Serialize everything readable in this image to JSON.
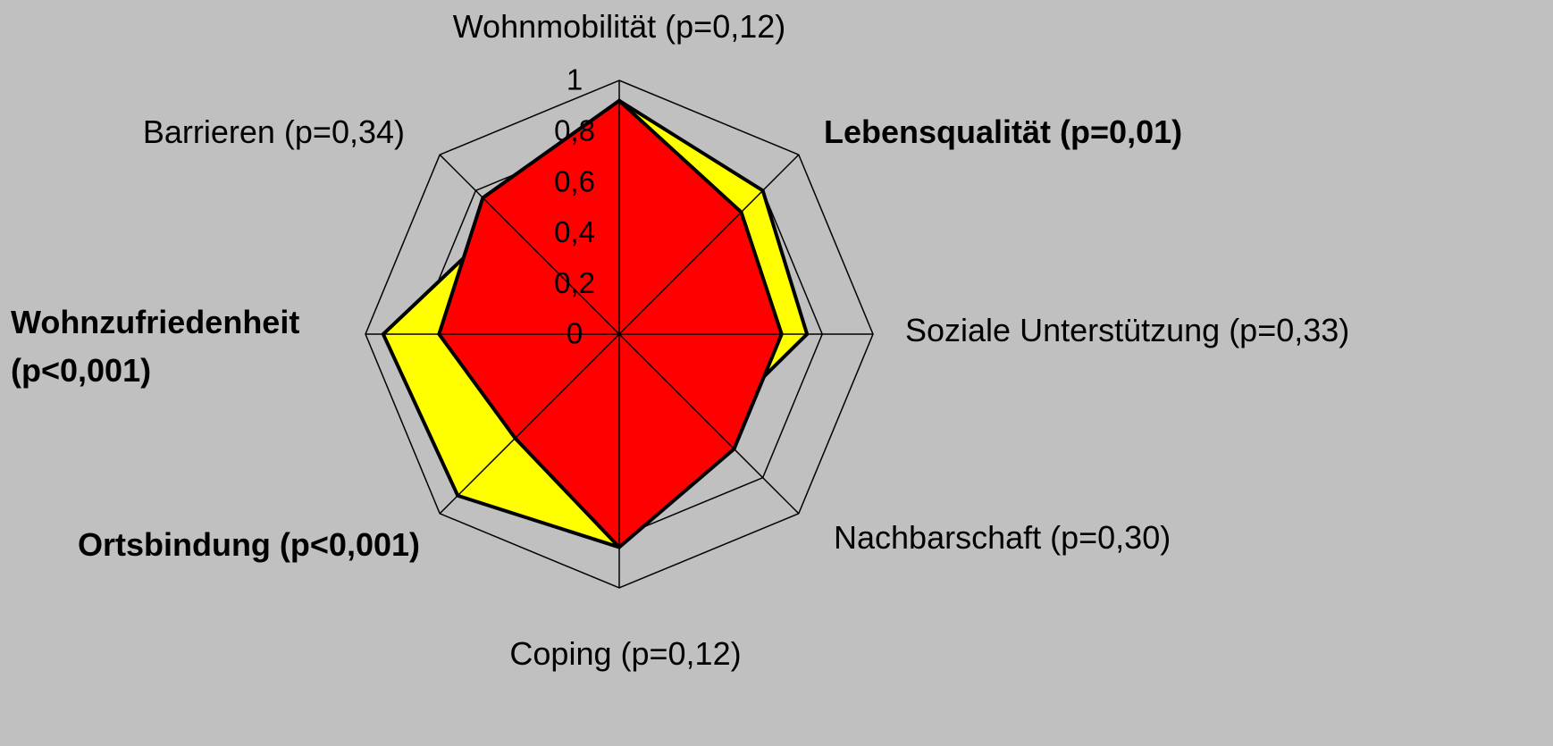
{
  "chart_data": {
    "type": "radar",
    "categories": [
      "Wohnmobilität (p=0,12)",
      "Lebensqualität (p=0,01)",
      "Soziale Unterstützung (p=0,33)",
      "Nachbarschaft (p=0,30)",
      "Coping (p=0,12)",
      "Ortsbindung (p<0,001)",
      "Wohnzufriedenheit (p<0,001)",
      "Barrieren (p=0,34)"
    ],
    "series": [
      {
        "color": "#ffff00",
        "values": [
          0.92,
          0.8,
          0.74,
          0.52,
          0.84,
          0.9,
          0.93,
          0.64
        ]
      },
      {
        "color": "#ff0000",
        "values": [
          0.92,
          0.68,
          0.64,
          0.64,
          0.84,
          0.58,
          0.71,
          0.76
        ]
      }
    ],
    "rlim": [
      0,
      1
    ],
    "rticks": [
      0,
      {
        "value": 0.2,
        "label": "0,2"
      },
      {
        "value": 0.4,
        "label": "0,4"
      },
      {
        "value": 0.6,
        "label": "0,6"
      },
      {
        "value": 0.8,
        "label": "0,8"
      },
      1
    ],
    "grid": true
  }
}
